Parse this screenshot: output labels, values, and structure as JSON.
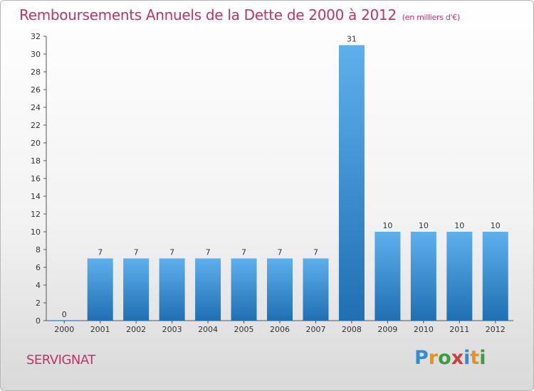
{
  "chart_data": {
    "type": "bar",
    "title": "Remboursements Annuels de la Dette de 2000 à 2012",
    "unit_label": "(en milliers d'€)",
    "categories": [
      "2000",
      "2001",
      "2002",
      "2003",
      "2004",
      "2005",
      "2006",
      "2007",
      "2008",
      "2009",
      "2010",
      "2011",
      "2012"
    ],
    "values": [
      0,
      7,
      7,
      7,
      7,
      7,
      7,
      7,
      31,
      10,
      10,
      10,
      10
    ],
    "ylim": [
      0,
      32
    ],
    "yticks": [
      0,
      2,
      4,
      6,
      8,
      10,
      12,
      14,
      16,
      18,
      20,
      22,
      24,
      26,
      28,
      30,
      32
    ],
    "xlabel": "",
    "ylabel": "",
    "bar_color": "#3a93d8",
    "bar_color_dark": "#1f6fb3"
  },
  "commune": "SERVIGNAT",
  "brand": "Proxiti",
  "colors": {
    "title": "#c0336b"
  }
}
